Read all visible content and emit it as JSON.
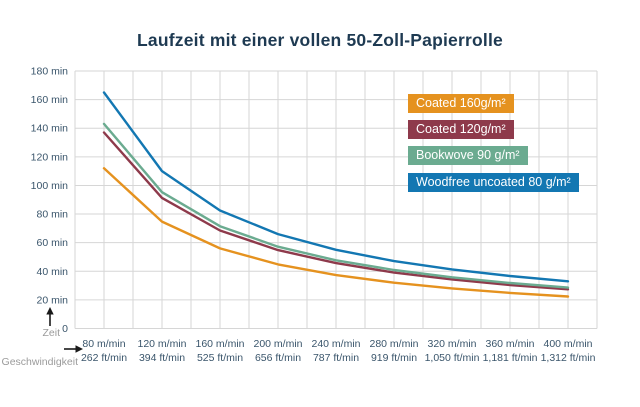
{
  "chart_data": {
    "type": "line",
    "title": "Laufzeit mit einer vollen 50-Zoll-Papierrolle",
    "xlabel": "Geschwindigkeit",
    "ylabel": "Zeit",
    "zero_label": "0",
    "x": [
      80,
      120,
      160,
      200,
      240,
      280,
      320,
      360,
      400
    ],
    "x_tick_labels": [
      [
        "80 m/min",
        "262 ft/min"
      ],
      [
        "120 m/min",
        "394 ft/min"
      ],
      [
        "160 m/min",
        "525 ft/min"
      ],
      [
        "200 m/min",
        "656 ft/min"
      ],
      [
        "240 m/min",
        "787 ft/min"
      ],
      [
        "280 m/min",
        "919 ft/min"
      ],
      [
        "320 m/min",
        "1,050 ft/min"
      ],
      [
        "360 m/min",
        "1,181 ft/min"
      ],
      [
        "400 m/min",
        "1,312 ft/min"
      ]
    ],
    "y_ticks": [
      20,
      40,
      60,
      80,
      100,
      120,
      140,
      160,
      180
    ],
    "y_tick_suffix": " min",
    "ylim": [
      0,
      180
    ],
    "xlim": [
      60,
      420
    ],
    "grid": true,
    "legend_position": "upper right",
    "series": [
      {
        "name": "Coated 160g/m²",
        "color": "#e5921f",
        "values": [
          112.0,
          74.7,
          56.0,
          44.8,
          37.3,
          32.0,
          28.0,
          24.9,
          22.4
        ]
      },
      {
        "name": "Coated 120g/m²",
        "color": "#8e3a4b",
        "values": [
          137.0,
          91.3,
          68.5,
          54.8,
          45.7,
          39.1,
          34.3,
          30.4,
          27.4
        ]
      },
      {
        "name": "Bookwove 90 g/m²",
        "color": "#6bab90",
        "values": [
          143.0,
          95.3,
          71.5,
          57.2,
          47.7,
          40.9,
          35.8,
          31.8,
          28.6
        ]
      },
      {
        "name": "Woodfree uncoated 80 g/m²",
        "color": "#1377b2",
        "values": [
          165.0,
          110.0,
          82.5,
          66.0,
          55.0,
          47.1,
          41.3,
          36.7,
          33.0
        ]
      }
    ],
    "colors": {
      "background": "#ffffff",
      "gridline": "#d6d6d6",
      "title_text": "#1e3a52",
      "tick_text": "#3a556b",
      "axis_name_text": "#9b9b9b",
      "arrow": "#1a1a1a"
    }
  }
}
